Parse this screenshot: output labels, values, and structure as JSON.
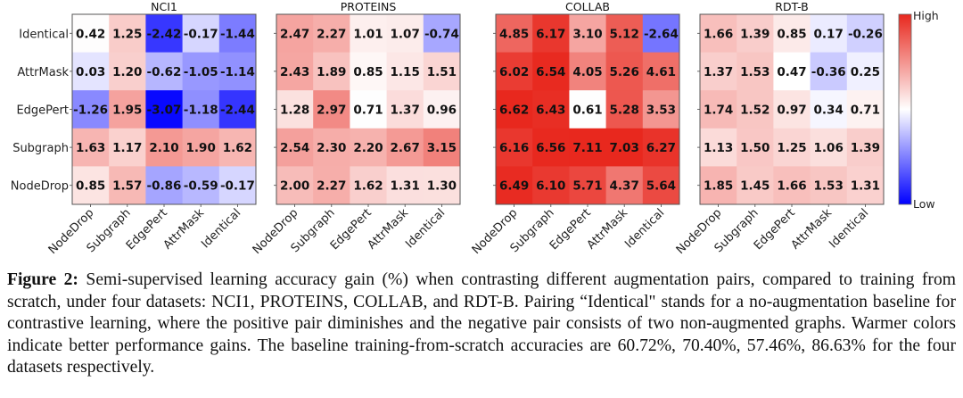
{
  "chart_data": {
    "type": "heatmap",
    "row_labels": [
      "Identical",
      "AttrMask",
      "EdgePert",
      "Subgraph",
      "NodeDrop"
    ],
    "col_labels": [
      "NodeDrop",
      "Subgraph",
      "EdgePert",
      "AttrMask",
      "Identical"
    ],
    "panels": [
      {
        "title": "NCI1",
        "values": [
          [
            0.42,
            1.25,
            -2.42,
            -0.17,
            -1.44
          ],
          [
            0.03,
            1.2,
            -0.62,
            -1.05,
            -1.14
          ],
          [
            -1.26,
            1.95,
            -3.07,
            -1.18,
            -2.44
          ],
          [
            1.63,
            1.17,
            2.1,
            1.9,
            1.62
          ],
          [
            0.85,
            1.57,
            -0.86,
            -0.59,
            -0.17
          ]
        ]
      },
      {
        "title": "PROTEINS",
        "values": [
          [
            2.47,
            2.27,
            1.01,
            1.07,
            -0.74
          ],
          [
            2.43,
            1.89,
            0.85,
            1.15,
            1.51
          ],
          [
            1.28,
            2.97,
            0.71,
            1.37,
            0.96
          ],
          [
            2.54,
            2.3,
            2.2,
            2.67,
            3.15
          ],
          [
            2.0,
            2.27,
            1.62,
            1.31,
            1.3
          ]
        ]
      },
      {
        "title": "COLLAB",
        "values": [
          [
            4.85,
            6.17,
            3.1,
            5.12,
            -2.64
          ],
          [
            6.02,
            6.54,
            4.05,
            5.26,
            4.61
          ],
          [
            6.62,
            6.43,
            0.61,
            5.28,
            3.53
          ],
          [
            6.16,
            6.56,
            7.11,
            7.03,
            6.27
          ],
          [
            6.49,
            6.1,
            5.71,
            4.37,
            5.64
          ]
        ]
      },
      {
        "title": "RDT-B",
        "values": [
          [
            1.66,
            1.39,
            0.85,
            0.17,
            -0.26
          ],
          [
            1.37,
            1.53,
            0.47,
            -0.36,
            0.25
          ],
          [
            1.74,
            1.52,
            0.97,
            0.34,
            0.71
          ],
          [
            1.13,
            1.5,
            1.25,
            1.06,
            1.39
          ],
          [
            1.85,
            1.45,
            1.66,
            1.53,
            1.31
          ]
        ]
      }
    ],
    "colorbar": {
      "high_label": "High",
      "low_label": "Low",
      "colormap": "bwr",
      "high_color": "#e8281e",
      "low_color": "#0000ff"
    }
  },
  "caption": {
    "label": "Figure 2:",
    "text": " Semi-supervised learning accuracy gain (%) when contrasting different augmentation pairs, compared to training from scratch, under four datasets: NCI1, PROTEINS, COLLAB, and RDT-B. Pairing “Identical\" stands for a no-augmentation baseline for contrastive learning, where the positive pair diminishes and the negative pair consists of two non-augmented graphs. Warmer colors indicate better performance gains. The baseline training-from-scratch accuracies are 60.72%, 70.40%, 57.46%, 86.63% for the four datasets respectively."
  }
}
